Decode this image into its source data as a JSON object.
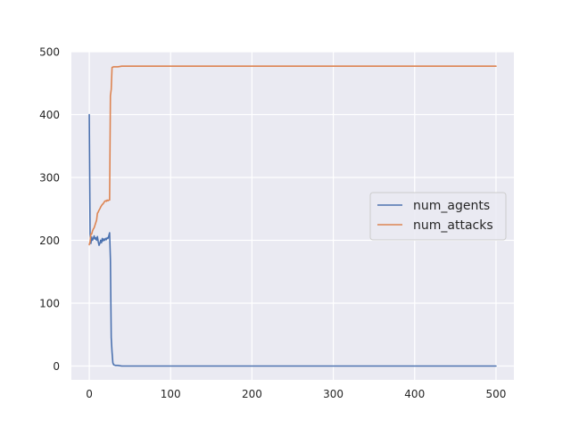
{
  "chart_data": {
    "type": "line",
    "title": "",
    "xlabel": "",
    "ylabel": "",
    "xlim": [
      -22,
      522
    ],
    "ylim": [
      -22,
      500
    ],
    "xticks": [
      0,
      100,
      200,
      300,
      400,
      500
    ],
    "yticks": [
      0,
      100,
      200,
      300,
      400,
      500
    ],
    "grid": true,
    "legend_position": "center-right",
    "series": [
      {
        "name": "num_agents",
        "color": "#4c72b0",
        "points": [
          [
            0,
            400
          ],
          [
            1,
            210
          ],
          [
            2,
            195
          ],
          [
            3,
            205
          ],
          [
            4,
            200
          ],
          [
            5,
            203
          ],
          [
            6,
            207
          ],
          [
            7,
            202
          ],
          [
            8,
            204
          ],
          [
            9,
            200
          ],
          [
            10,
            206
          ],
          [
            11,
            198
          ],
          [
            12,
            192
          ],
          [
            13,
            195
          ],
          [
            14,
            200
          ],
          [
            15,
            196
          ],
          [
            16,
            203
          ],
          [
            17,
            199
          ],
          [
            18,
            202
          ],
          [
            19,
            200
          ],
          [
            20,
            203
          ],
          [
            21,
            201
          ],
          [
            22,
            204
          ],
          [
            23,
            203
          ],
          [
            24,
            207
          ],
          [
            25,
            212
          ],
          [
            26,
            170
          ],
          [
            27,
            45
          ],
          [
            28,
            22
          ],
          [
            29,
            5
          ],
          [
            30,
            2
          ],
          [
            32,
            1
          ],
          [
            35,
            1
          ],
          [
            40,
            0
          ],
          [
            50,
            0
          ],
          [
            100,
            0
          ],
          [
            200,
            0
          ],
          [
            300,
            0
          ],
          [
            400,
            0
          ],
          [
            500,
            0
          ]
        ]
      },
      {
        "name": "num_attacks",
        "color": "#dd8452",
        "points": [
          [
            0,
            193
          ],
          [
            1,
            198
          ],
          [
            2,
            210
          ],
          [
            3,
            210
          ],
          [
            4,
            215
          ],
          [
            5,
            218
          ],
          [
            6,
            220
          ],
          [
            7,
            224
          ],
          [
            8,
            228
          ],
          [
            9,
            232
          ],
          [
            10,
            243
          ],
          [
            11,
            245
          ],
          [
            12,
            248
          ],
          [
            13,
            250
          ],
          [
            14,
            253
          ],
          [
            15,
            255
          ],
          [
            16,
            257
          ],
          [
            17,
            258
          ],
          [
            18,
            260
          ],
          [
            19,
            262
          ],
          [
            20,
            263
          ],
          [
            21,
            262
          ],
          [
            22,
            264
          ],
          [
            23,
            263
          ],
          [
            24,
            264
          ],
          [
            25,
            264
          ],
          [
            26,
            430
          ],
          [
            27,
            440
          ],
          [
            28,
            475
          ],
          [
            30,
            476
          ],
          [
            35,
            476
          ],
          [
            40,
            477
          ],
          [
            50,
            477
          ],
          [
            100,
            477
          ],
          [
            200,
            477
          ],
          [
            300,
            477
          ],
          [
            400,
            477
          ],
          [
            500,
            477
          ]
        ]
      }
    ]
  }
}
